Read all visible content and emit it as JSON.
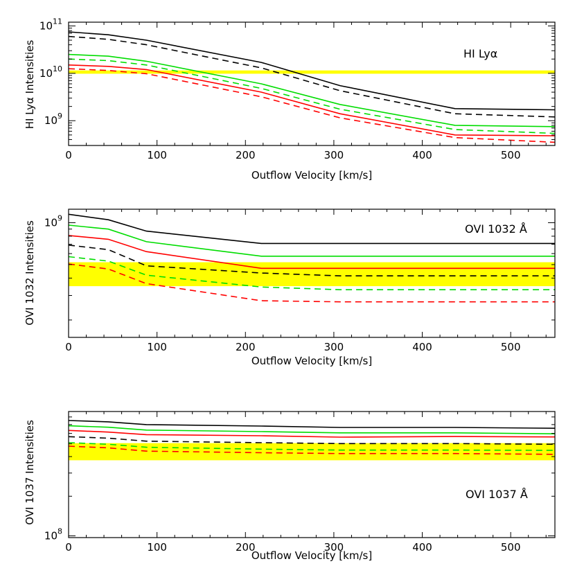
{
  "chart_data": [
    {
      "type": "line",
      "label": "HI Lyα",
      "xlabel": "Outflow Velocity [km/s]",
      "ylabel": "HI Lyα Intensities",
      "xlim": [
        0,
        550
      ],
      "ylim": [
        300000000,
        120000000000
      ],
      "yscale": "log",
      "xticks": [
        0,
        100,
        200,
        300,
        400,
        500
      ],
      "yticks": [
        1000000000,
        10000000000,
        100000000000
      ],
      "ytick_labels": [
        [
          "10",
          "9"
        ],
        [
          "10",
          "10"
        ],
        [
          "10",
          "11"
        ]
      ],
      "band": [
        9800000000,
        11500000000
      ],
      "series": [
        {
          "color": "#000000",
          "dash": false,
          "x": [
            0,
            45,
            88,
            218,
            307,
            437,
            550
          ],
          "y": [
            75000000000,
            65000000000,
            50000000000,
            17000000000,
            5500000000,
            1800000000,
            1700000000
          ]
        },
        {
          "color": "#000000",
          "dash": true,
          "x": [
            0,
            45,
            88,
            218,
            307,
            437,
            550
          ],
          "y": [
            60000000000,
            52000000000,
            40000000000,
            13000000000,
            4300000000,
            1400000000,
            1200000000
          ]
        },
        {
          "color": "#00dd00",
          "dash": false,
          "x": [
            0,
            45,
            88,
            218,
            307,
            437,
            550
          ],
          "y": [
            25000000000,
            23000000000,
            18000000000,
            6000000000,
            2200000000,
            800000000,
            750000000
          ]
        },
        {
          "color": "#00dd00",
          "dash": true,
          "x": [
            0,
            45,
            88,
            218,
            307,
            437,
            550
          ],
          "y": [
            20000000000,
            18500000000,
            15000000000,
            4800000000,
            1750000000,
            650000000,
            540000000
          ]
        },
        {
          "color": "#ff0000",
          "dash": false,
          "x": [
            0,
            45,
            88,
            218,
            307,
            437,
            550
          ],
          "y": [
            15000000000,
            14000000000,
            12000000000,
            4000000000,
            1400000000,
            500000000,
            480000000
          ]
        },
        {
          "color": "#ff0000",
          "dash": true,
          "x": [
            0,
            45,
            88,
            218,
            307,
            437,
            550
          ],
          "y": [
            12500000000,
            11500000000,
            9800000000,
            3200000000,
            1150000000,
            440000000,
            350000000
          ]
        }
      ]
    },
    {
      "type": "line",
      "label": "OVI 1032 Å",
      "xlabel": "Outflow Velocity [km/s]",
      "ylabel": "OVI 1032 Intensities",
      "xlim": [
        0,
        550
      ],
      "ylim": [
        150000000,
        1250000000
      ],
      "yscale": "log",
      "xticks": [
        0,
        100,
        200,
        300,
        400,
        500
      ],
      "yticks": [
        1000000000
      ],
      "ytick_labels": [
        [
          "10",
          "9"
        ]
      ],
      "band": [
        350000000,
        520000000
      ],
      "series": [
        {
          "color": "#000000",
          "dash": false,
          "x": [
            0,
            45,
            88,
            218,
            307,
            437,
            550
          ],
          "y": [
            1150000000,
            1050000000,
            870000000,
            710000000,
            710000000,
            710000000,
            710000000
          ]
        },
        {
          "color": "#000000",
          "dash": true,
          "x": [
            0,
            45,
            88,
            218,
            307,
            437,
            550
          ],
          "y": [
            690000000,
            640000000,
            490000000,
            435000000,
            415000000,
            415000000,
            415000000
          ]
        },
        {
          "color": "#00dd00",
          "dash": false,
          "x": [
            0,
            45,
            88,
            218,
            307,
            437,
            550
          ],
          "y": [
            960000000,
            900000000,
            730000000,
            575000000,
            575000000,
            575000000,
            575000000
          ]
        },
        {
          "color": "#00dd00",
          "dash": true,
          "x": [
            0,
            45,
            88,
            218,
            307,
            437,
            550
          ],
          "y": [
            570000000,
            530000000,
            420000000,
            345000000,
            330000000,
            330000000,
            330000000
          ]
        },
        {
          "color": "#ff0000",
          "dash": false,
          "x": [
            0,
            45,
            88,
            218,
            307,
            437,
            550
          ],
          "y": [
            810000000,
            760000000,
            620000000,
            470000000,
            470000000,
            470000000,
            470000000
          ]
        },
        {
          "color": "#ff0000",
          "dash": true,
          "x": [
            0,
            45,
            88,
            218,
            307,
            437,
            550
          ],
          "y": [
            505000000,
            465000000,
            365000000,
            275000000,
            270000000,
            270000000,
            270000000
          ]
        }
      ]
    },
    {
      "type": "line",
      "label": "OVI 1037 Å",
      "xlabel": "Outflow Velocity [km/s]",
      "ylabel": "OVI 1037 Intensities",
      "xlim": [
        0,
        550
      ],
      "ylim": [
        97000000,
        880000000
      ],
      "yscale": "log",
      "xticks": [
        0,
        100,
        200,
        300,
        400,
        500
      ],
      "yticks": [
        100000000
      ],
      "ytick_labels": [
        [
          "10",
          "8"
        ]
      ],
      "band": [
        375000000,
        506000000
      ],
      "series": [
        {
          "color": "#000000",
          "dash": false,
          "x": [
            0,
            45,
            88,
            218,
            307,
            437,
            550
          ],
          "y": [
            752000000,
            735000000,
            700000000,
            682000000,
            666000000,
            666000000,
            656000000
          ]
        },
        {
          "color": "#000000",
          "dash": true,
          "x": [
            0,
            45,
            88,
            218,
            307,
            437,
            550
          ],
          "y": [
            567000000,
            552000000,
            524000000,
            510000000,
            502000000,
            502000000,
            496000000
          ]
        },
        {
          "color": "#00dd00",
          "dash": false,
          "x": [
            0,
            45,
            88,
            218,
            307,
            437,
            550
          ],
          "y": [
            686000000,
            668000000,
            636000000,
            619000000,
            606000000,
            606000000,
            596000000
          ]
        },
        {
          "color": "#00dd00",
          "dash": true,
          "x": [
            0,
            45,
            88,
            218,
            307,
            437,
            550
          ],
          "y": [
            510000000,
            496000000,
            471000000,
            456000000,
            448000000,
            448000000,
            446000000
          ]
        },
        {
          "color": "#ff0000",
          "dash": false,
          "x": [
            0,
            45,
            88,
            218,
            307,
            437,
            550
          ],
          "y": [
            632000000,
            614000000,
            587000000,
            576000000,
            562000000,
            568000000,
            564000000
          ]
        },
        {
          "color": "#ff0000",
          "dash": true,
          "x": [
            0,
            45,
            88,
            218,
            307,
            437,
            550
          ],
          "y": [
            480000000,
            466000000,
            440000000,
            428000000,
            422000000,
            422000000,
            416000000
          ]
        }
      ]
    }
  ]
}
